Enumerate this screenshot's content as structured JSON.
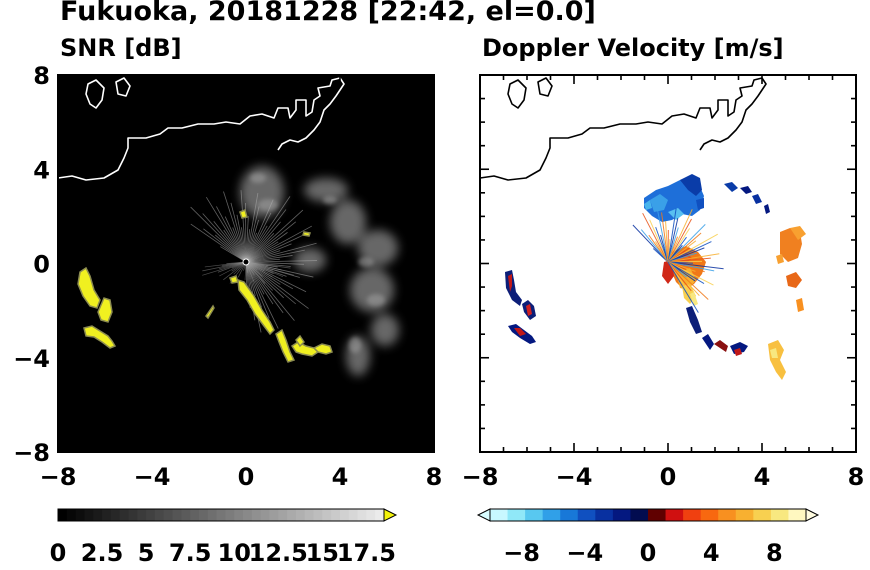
{
  "title": "Fukuoka, 20181228 [22:42, el=0.0]",
  "chart_data": [
    {
      "type": "heatmap",
      "title": "SNR [dB]",
      "x_ticks": [
        "−8",
        "−4",
        "0",
        "4",
        "8"
      ],
      "y_ticks": [
        "8",
        "4",
        "0",
        "−4",
        "−8"
      ],
      "xlim": [
        -8,
        8
      ],
      "ylim": [
        -8,
        8
      ],
      "colorbar": {
        "range": [
          0,
          18.5
        ],
        "tick_labels": [
          "0",
          "2.5",
          "5",
          "7.5",
          "10",
          "12.5",
          "15",
          "17.5"
        ],
        "tick_values": [
          0,
          2.5,
          5,
          7.5,
          10,
          12.5,
          15,
          17.5
        ],
        "low_color": "#000000",
        "high_color": "#ffffff",
        "extend_color": "#f2f20a"
      },
      "background_color": "#000000",
      "coastline_color": "#ffffff",
      "echo_color": "#f0f020"
    },
    {
      "type": "heatmap",
      "title": "Doppler Velocity [m/s]",
      "x_ticks": [
        "−8",
        "−4",
        "0",
        "4",
        "8"
      ],
      "y_ticks": [],
      "xlim": [
        -8,
        8
      ],
      "ylim": [
        -8,
        8
      ],
      "colorbar": {
        "range": [
          -10,
          10
        ],
        "tick_labels": [
          "−8",
          "−4",
          "0",
          "4",
          "8"
        ],
        "tick_values": [
          -8,
          -4,
          0,
          4,
          8
        ],
        "colors": [
          "#c8f8ff",
          "#90e8f8",
          "#58c8f0",
          "#30a0e8",
          "#1878d8",
          "#1050c0",
          "#0830a0",
          "#041880",
          "#020c50",
          "#600000",
          "#d01010",
          "#f04010",
          "#f86810",
          "#f89020",
          "#f8b030",
          "#f8d050",
          "#f8e880",
          "#fff8c0"
        ]
      },
      "background_color": "#ffffff",
      "coastline_color": "#000000"
    }
  ]
}
